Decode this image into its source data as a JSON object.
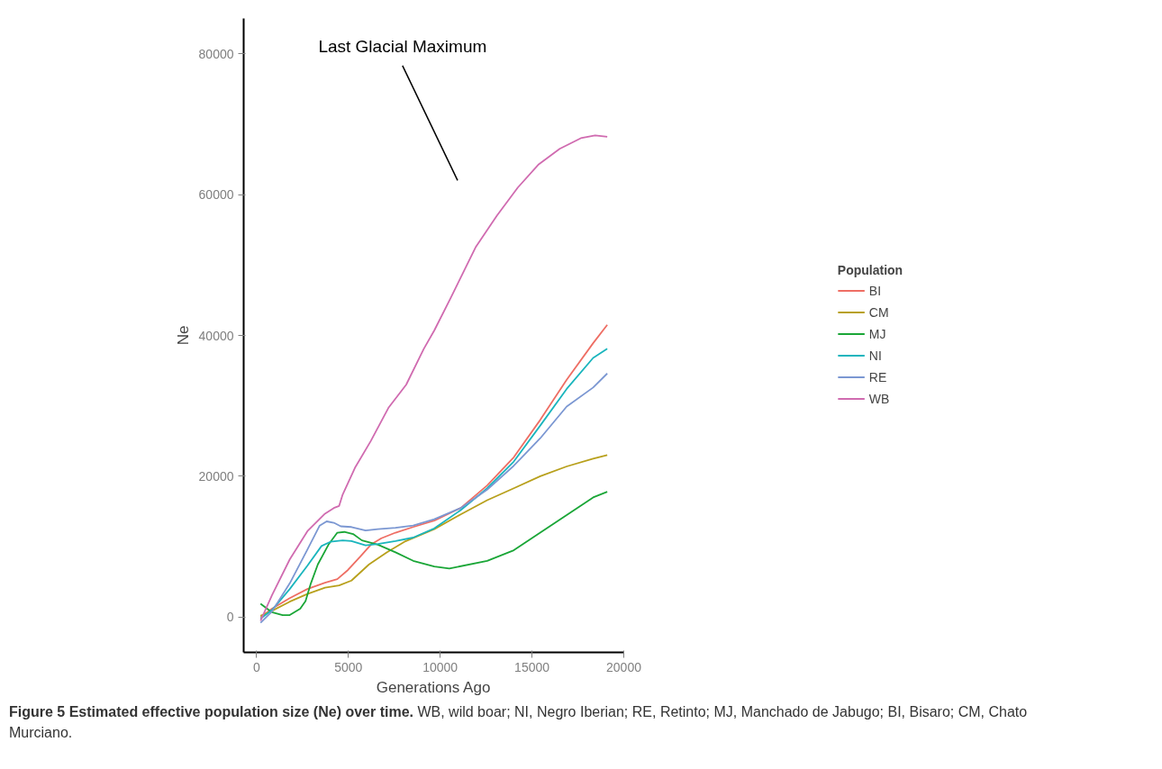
{
  "chart_data": {
    "type": "line",
    "title": "Figure 5 Estimated effective population size (Ne) over time.",
    "xlabel": "Generations Ago",
    "ylabel": "Ne",
    "legend_title": "Population",
    "legend": "right",
    "grid": false,
    "marker": "none",
    "line_style": "solid",
    "xlim": [
      -700,
      20000
    ],
    "xticks": [
      0,
      5000,
      10000,
      15000,
      20000
    ],
    "ylim": [
      -5000,
      85000
    ],
    "yticks": [
      0,
      20000,
      40000,
      60000,
      80000
    ],
    "annotations": [
      "Last Glacial Maximum",
      "WB, wild boar; NI, Negro Iberian; RE, Retinto; MJ, Manchado de Jabugo; BI, Bisaro; CM, Chato Murciano."
    ],
    "series": [
      {
        "name": "BI",
        "color": "#ee6e64",
        "x": [
          220,
          840,
          1810,
          2770,
          3730,
          4400,
          4980,
          5650,
          6230,
          6800,
          7570,
          8530,
          9680,
          11120,
          12560,
          14010,
          15450,
          16890,
          18330,
          19100
        ],
        "values": [
          0,
          1200,
          2700,
          4000,
          4900,
          5400,
          6700,
          8600,
          10300,
          11200,
          12000,
          12800,
          13700,
          15500,
          18700,
          22700,
          28000,
          33700,
          38900,
          41500
        ]
      },
      {
        "name": "CM",
        "color": "#b8a01c",
        "x": [
          220,
          840,
          1810,
          2770,
          3730,
          4500,
          5170,
          6130,
          7090,
          8050,
          9680,
          11120,
          12560,
          14010,
          15450,
          16890,
          18330,
          19100
        ],
        "values": [
          200,
          900,
          2200,
          3300,
          4200,
          4500,
          5200,
          7500,
          9200,
          10700,
          12500,
          14600,
          16600,
          18300,
          20000,
          21400,
          22500,
          23000
        ]
      },
      {
        "name": "MJ",
        "color": "#1aa637",
        "x": [
          220,
          840,
          1420,
          1810,
          2380,
          2670,
          2960,
          3340,
          3920,
          4400,
          4780,
          5260,
          5740,
          6610,
          7570,
          8530,
          9680,
          10500,
          12560,
          14010,
          15450,
          16890,
          18330,
          19100
        ],
        "values": [
          1900,
          700,
          300,
          300,
          1200,
          2300,
          4800,
          7500,
          10300,
          12000,
          12100,
          11800,
          10900,
          10300,
          9200,
          8000,
          7200,
          6900,
          8000,
          9500,
          12000,
          14500,
          17000,
          17800
        ]
      },
      {
        "name": "NI",
        "color": "#1ab5bd",
        "x": [
          220,
          840,
          1810,
          2770,
          3540,
          4020,
          4690,
          5170,
          5940,
          6610,
          7570,
          8530,
          9680,
          11120,
          12560,
          14010,
          15450,
          16890,
          18330,
          19100
        ],
        "values": [
          -200,
          1000,
          4000,
          7300,
          10100,
          10700,
          10900,
          10800,
          10200,
          10400,
          10800,
          11300,
          12600,
          15200,
          18300,
          22100,
          27200,
          32400,
          36800,
          38100
        ]
      },
      {
        "name": "RE",
        "color": "#7b97d2",
        "x": [
          220,
          840,
          1810,
          2770,
          3440,
          3820,
          4210,
          4590,
          5170,
          5940,
          6610,
          7570,
          8530,
          9680,
          11120,
          12560,
          14010,
          15450,
          16890,
          18330,
          19100
        ],
        "values": [
          -800,
          800,
          4800,
          9600,
          13000,
          13600,
          13400,
          12900,
          12800,
          12300,
          12500,
          12700,
          13000,
          13900,
          15500,
          18100,
          21500,
          25400,
          29900,
          32600,
          34600
        ]
      },
      {
        "name": "WB",
        "color": "#d06bb0",
        "x": [
          220,
          840,
          1810,
          2770,
          3730,
          4210,
          4500,
          4690,
          5360,
          6220,
          7180,
          8150,
          9110,
          9680,
          10550,
          11950,
          13090,
          14230,
          15370,
          16510,
          17660,
          18440,
          19100
        ],
        "values": [
          -500,
          3100,
          8200,
          12200,
          14700,
          15500,
          15800,
          17400,
          21200,
          25000,
          29700,
          33000,
          38100,
          40700,
          45200,
          52600,
          57000,
          61000,
          64300,
          66500,
          68000,
          68400,
          68200
        ]
      }
    ]
  }
}
